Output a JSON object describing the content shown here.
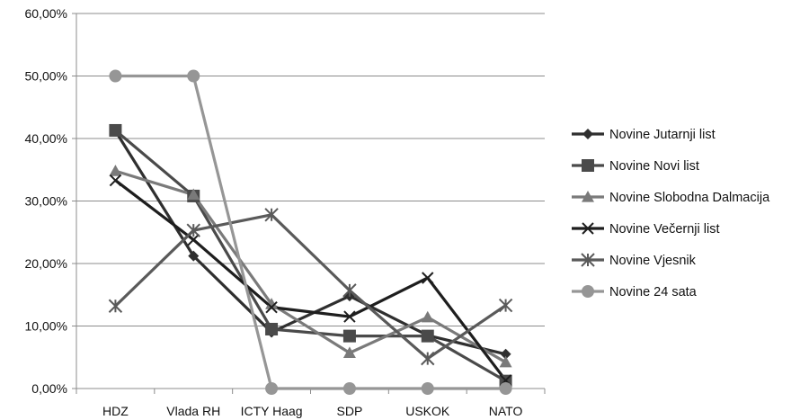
{
  "chart_data": {
    "type": "line",
    "title": "",
    "xlabel": "",
    "ylabel": "",
    "categories": [
      "HDZ",
      "Vlada RH",
      "ICTY Haag",
      "SDP",
      "USKOK",
      "NATO"
    ],
    "ylim": [
      0,
      60
    ],
    "yticks": [
      0,
      10,
      20,
      30,
      40,
      50,
      60
    ],
    "ytick_labels": [
      "0,00%",
      "10,00%",
      "20,00%",
      "30,00%",
      "40,00%",
      "50,00%",
      "60,00%"
    ],
    "grid": "horizontal",
    "legend_position": "right",
    "series": [
      {
        "name": "Novine Jutarnji list",
        "marker": "diamond",
        "color": "#2f2f2f",
        "values": [
          41.2,
          21.2,
          9.0,
          14.8,
          8.5,
          5.5
        ]
      },
      {
        "name": "Novine Novi list",
        "marker": "square",
        "color": "#4a4a4a",
        "values": [
          41.3,
          30.8,
          9.5,
          8.4,
          8.4,
          1.2
        ]
      },
      {
        "name": "Novine Slobodna Dalmacija",
        "marker": "triangle",
        "color": "#7a7a7a",
        "values": [
          34.8,
          31.0,
          13.5,
          5.7,
          11.4,
          4.2
        ]
      },
      {
        "name": "Novine Večernji list",
        "marker": "x",
        "color": "#1e1e1e",
        "values": [
          33.3,
          23.8,
          13.0,
          11.5,
          17.7,
          1.3
        ]
      },
      {
        "name": "Novine Vjesnik",
        "marker": "star",
        "color": "#5a5a5a",
        "values": [
          13.2,
          25.3,
          27.8,
          15.7,
          4.8,
          13.3
        ]
      },
      {
        "name": "Novine 24 sata",
        "marker": "circle",
        "color": "#969696",
        "values": [
          50.0,
          50.0,
          0.0,
          0.0,
          0.0,
          0.0
        ]
      }
    ]
  }
}
